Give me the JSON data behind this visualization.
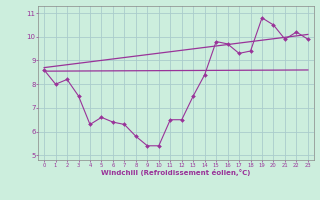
{
  "xlabel": "Windchill (Refroidissement éolien,°C)",
  "bg_color": "#cceedd",
  "line_color": "#993399",
  "grid_color": "#aacccc",
  "xlim": [
    -0.5,
    23.5
  ],
  "ylim": [
    4.8,
    11.3
  ],
  "yticks": [
    5,
    6,
    7,
    8,
    9,
    10,
    11
  ],
  "xticks": [
    0,
    1,
    2,
    3,
    4,
    5,
    6,
    7,
    8,
    9,
    10,
    11,
    12,
    13,
    14,
    15,
    16,
    17,
    18,
    19,
    20,
    21,
    22,
    23
  ],
  "series1_x": [
    0,
    1,
    2,
    3,
    4,
    5,
    6,
    7,
    8,
    9,
    10,
    11,
    12,
    13,
    14,
    15,
    16,
    17,
    18,
    19,
    20,
    21,
    22,
    23
  ],
  "series1_y": [
    8.6,
    8.0,
    8.2,
    7.5,
    6.3,
    6.6,
    6.4,
    6.3,
    5.8,
    5.4,
    5.4,
    6.5,
    6.5,
    7.5,
    8.4,
    9.8,
    9.7,
    9.3,
    9.4,
    10.8,
    10.5,
    9.9,
    10.2,
    9.9
  ],
  "trend1_x": [
    0,
    23
  ],
  "trend1_y": [
    8.55,
    8.6
  ],
  "trend2_x": [
    0,
    23
  ],
  "trend2_y": [
    8.7,
    10.1
  ]
}
